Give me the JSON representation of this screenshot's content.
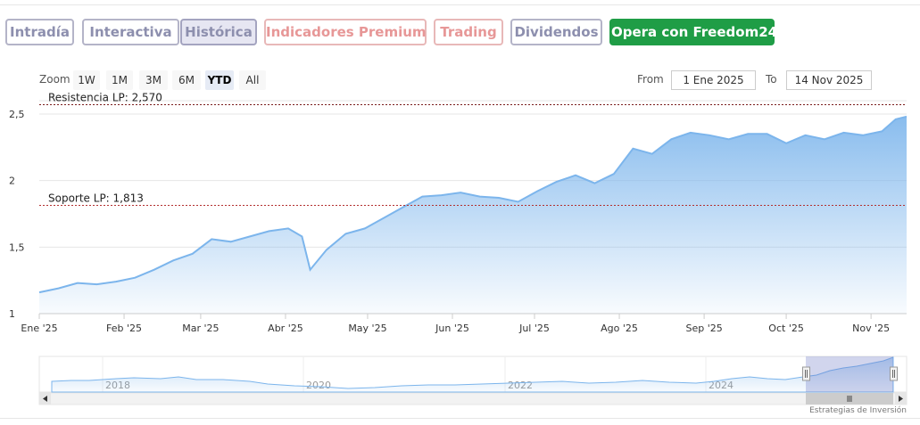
{
  "tabs": [
    {
      "label": "Intradía"
    },
    {
      "label": "Interactiva"
    },
    {
      "label": "Histórica"
    },
    {
      "label": "Indicadores Premium"
    },
    {
      "label": "Trading"
    },
    {
      "label": "Dividendos"
    },
    {
      "label": "Opera con Freedom24"
    }
  ],
  "zoom": {
    "label": "Zoom",
    "buttons": [
      "1W",
      "1M",
      "3M",
      "6M",
      "YTD",
      "All"
    ],
    "active": "YTD"
  },
  "range": {
    "from_label": "From",
    "from_value": "1 Ene 2025",
    "to_label": "To",
    "to_value": "14 Nov 2025"
  },
  "credits": "Estrategias de Inversión",
  "colors": {
    "line": "#7cb5ec",
    "resistance": "#7a1c1c",
    "support": "#b33030",
    "accent_green": "#1f9d46"
  },
  "chart_data": {
    "type": "area",
    "title": "",
    "xlabel": "",
    "ylabel": "",
    "x_ticks": [
      "Ene '25",
      "Feb '25",
      "Mar '25",
      "Abr '25",
      "May '25",
      "Jun '25",
      "Jul '25",
      "Ago '25",
      "Sep '25",
      "Oct '25",
      "Nov '25"
    ],
    "y_ticks": [
      "1",
      "1,5",
      "2",
      "2,5"
    ],
    "ylim": [
      1,
      2.6
    ],
    "xlim": [
      "2025-01-01",
      "2025-11-14"
    ],
    "grid": true,
    "annotations": [
      {
        "label": "Resistencia LP: 2,570",
        "value": 2.57
      },
      {
        "label": "Soporte LP: 1,813",
        "value": 1.813
      }
    ],
    "series": [
      {
        "x": [
          "2025-01-01",
          "2025-01-08",
          "2025-01-15",
          "2025-01-22",
          "2025-01-29",
          "2025-02-05",
          "2025-02-12",
          "2025-02-19",
          "2025-02-26",
          "2025-03-05",
          "2025-03-12",
          "2025-03-19",
          "2025-03-26",
          "2025-04-02",
          "2025-04-07",
          "2025-04-10",
          "2025-04-16",
          "2025-04-23",
          "2025-04-30",
          "2025-05-07",
          "2025-05-14",
          "2025-05-21",
          "2025-05-28",
          "2025-06-04",
          "2025-06-11",
          "2025-06-18",
          "2025-06-25",
          "2025-07-02",
          "2025-07-09",
          "2025-07-16",
          "2025-07-23",
          "2025-07-30",
          "2025-08-06",
          "2025-08-13",
          "2025-08-20",
          "2025-08-27",
          "2025-09-03",
          "2025-09-10",
          "2025-09-17",
          "2025-09-24",
          "2025-10-01",
          "2025-10-08",
          "2025-10-15",
          "2025-10-22",
          "2025-10-29",
          "2025-11-05",
          "2025-11-10",
          "2025-11-14"
        ],
        "values": [
          1.16,
          1.19,
          1.23,
          1.22,
          1.24,
          1.27,
          1.33,
          1.4,
          1.45,
          1.56,
          1.54,
          1.58,
          1.62,
          1.64,
          1.58,
          1.33,
          1.48,
          1.6,
          1.64,
          1.72,
          1.8,
          1.88,
          1.89,
          1.91,
          1.88,
          1.87,
          1.84,
          1.92,
          1.99,
          2.04,
          1.98,
          2.05,
          2.24,
          2.2,
          2.31,
          2.36,
          2.34,
          2.31,
          2.35,
          2.35,
          2.28,
          2.34,
          2.31,
          2.36,
          2.34,
          2.37,
          2.46,
          2.48
        ]
      }
    ],
    "navigator": {
      "x_labels": [
        "2018",
        "2020",
        "2022",
        "2024"
      ]
    }
  }
}
